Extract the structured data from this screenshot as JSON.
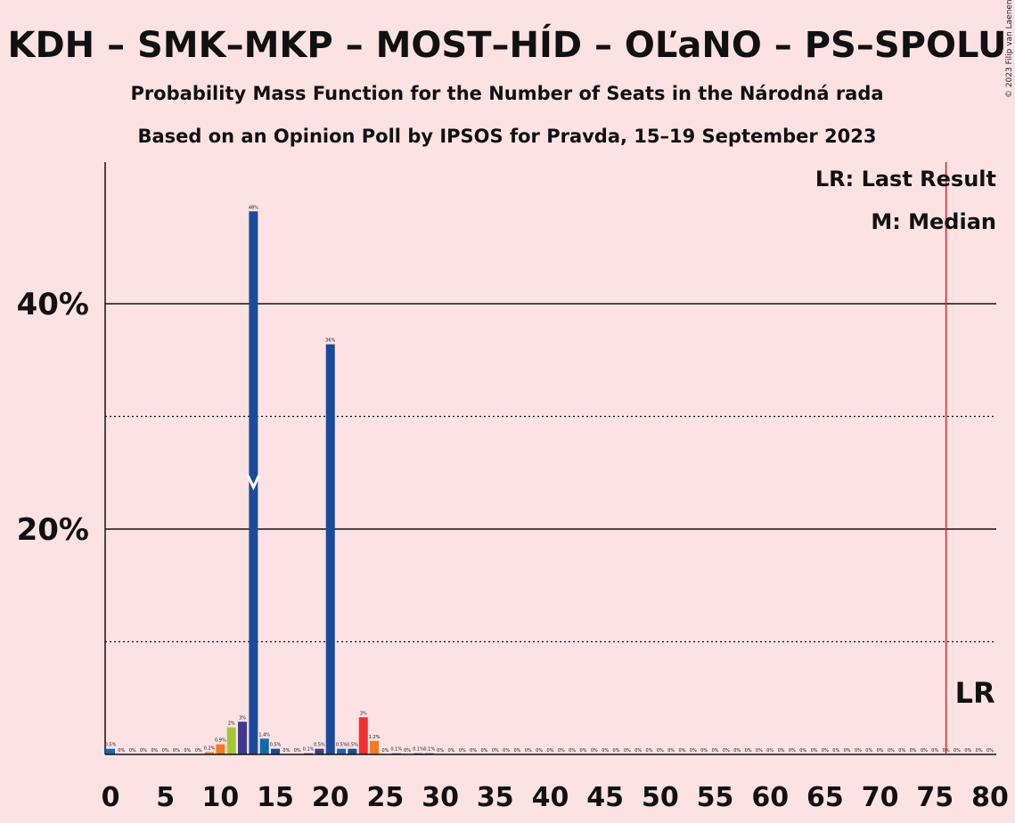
{
  "chart_data": {
    "type": "bar",
    "title": "KDH – SMK–MKP – MOST–HÍD – OĽaNO – PS–SPOLU",
    "subtitle": "Probability Mass Function for the Number of Seats in the Národná rada",
    "subtitle2": "Based on an Opinion Poll by IPSOS for Pravda, 15–19 September 2023",
    "copyright": "© 2023 Filip van Laenen",
    "xlabel": "",
    "ylabel": "",
    "xlim": [
      0,
      80
    ],
    "ylim": [
      0,
      52
    ],
    "y_ticks": [
      {
        "value": 20,
        "label": "20%"
      },
      {
        "value": 40,
        "label": "40%"
      }
    ],
    "y_dotted": [
      10,
      30
    ],
    "x_ticks": [
      0,
      5,
      10,
      15,
      20,
      25,
      30,
      35,
      40,
      45,
      50,
      55,
      60,
      65,
      70,
      75,
      80
    ],
    "grid": true,
    "legend": {
      "position": "top-right",
      "entries": [
        "LR: Last Result",
        "M: Median"
      ]
    },
    "last_result": {
      "seats": 76,
      "label": "LR"
    },
    "median": {
      "seats": 13,
      "label": "M"
    },
    "colors": {
      "background": "#fde2e4",
      "kdh": "#1a4a9c",
      "smk": "#a4c639",
      "most": "#f47920",
      "olano": "#3f3a8f",
      "ps": "#0f6ab0",
      "spolu": "#ee3034",
      "lr_line": "#e6192b"
    },
    "bars": [
      {
        "x": 0,
        "value": 0.5,
        "label": "0.5%",
        "color": "#0f6ab0"
      },
      {
        "x": 1,
        "value": 0,
        "label": "0%"
      },
      {
        "x": 2,
        "value": 0,
        "label": "0%"
      },
      {
        "x": 3,
        "value": 0,
        "label": "0%"
      },
      {
        "x": 4,
        "value": 0,
        "label": "0%"
      },
      {
        "x": 5,
        "value": 0,
        "label": "0%"
      },
      {
        "x": 6,
        "value": 0,
        "label": "0%"
      },
      {
        "x": 7,
        "value": 0,
        "label": "0%"
      },
      {
        "x": 8,
        "value": 0,
        "label": "0%"
      },
      {
        "x": 9,
        "value": 0.2,
        "label": "0.2%",
        "color": "#f47920"
      },
      {
        "x": 10,
        "value": 0.9,
        "label": "0.9%",
        "color": "#f47920"
      },
      {
        "x": 11,
        "value": 2.4,
        "label": "2%",
        "color": "#a4c639"
      },
      {
        "x": 12,
        "value": 2.9,
        "label": "3%",
        "color": "#3f3a8f"
      },
      {
        "x": 13,
        "value": 48.2,
        "label": "48%",
        "color": "#1a4a9c"
      },
      {
        "x": 14,
        "value": 1.4,
        "label": "1.4%",
        "color": "#0f6ab0"
      },
      {
        "x": 15,
        "value": 0.5,
        "label": "0.5%",
        "color": "#1a4a9c"
      },
      {
        "x": 16,
        "value": 0,
        "label": "0%"
      },
      {
        "x": 17,
        "value": 0,
        "label": "0%"
      },
      {
        "x": 18,
        "value": 0.1,
        "label": "0.1%",
        "color": "#3f3a8f"
      },
      {
        "x": 19,
        "value": 0.5,
        "label": "0.5%",
        "color": "#3f3a8f"
      },
      {
        "x": 20,
        "value": 36.4,
        "label": "36%",
        "color": "#1a4a9c"
      },
      {
        "x": 21,
        "value": 0.5,
        "label": "0.5%",
        "color": "#0f6ab0"
      },
      {
        "x": 22,
        "value": 0.5,
        "label": "0.5%",
        "color": "#1a4a9c"
      },
      {
        "x": 23,
        "value": 3.3,
        "label": "3%",
        "color": "#ee3034"
      },
      {
        "x": 24,
        "value": 1.2,
        "label": "1.2%",
        "color": "#f47920"
      },
      {
        "x": 25,
        "value": 0,
        "label": "0%"
      },
      {
        "x": 26,
        "value": 0.1,
        "label": "0.1%",
        "color": "#0f6ab0"
      },
      {
        "x": 27,
        "value": 0,
        "label": "0%"
      },
      {
        "x": 28,
        "value": 0.1,
        "label": "0.1%",
        "color": "#0f6ab0"
      },
      {
        "x": 29,
        "value": 0.1,
        "label": "0.1%",
        "color": "#0f6ab0"
      },
      {
        "x": 30,
        "value": 0,
        "label": "0%"
      },
      {
        "x": 31,
        "value": 0,
        "label": "0%"
      },
      {
        "x": 32,
        "value": 0,
        "label": "0%"
      },
      {
        "x": 33,
        "value": 0,
        "label": "0%"
      },
      {
        "x": 34,
        "value": 0,
        "label": "0%"
      },
      {
        "x": 35,
        "value": 0,
        "label": "0%"
      },
      {
        "x": 36,
        "value": 0,
        "label": "0%"
      },
      {
        "x": 37,
        "value": 0,
        "label": "0%"
      },
      {
        "x": 38,
        "value": 0,
        "label": "0%"
      },
      {
        "x": 39,
        "value": 0,
        "label": "0%"
      },
      {
        "x": 40,
        "value": 0,
        "label": "0%"
      },
      {
        "x": 41,
        "value": 0,
        "label": "0%"
      },
      {
        "x": 42,
        "value": 0,
        "label": "0%"
      },
      {
        "x": 43,
        "value": 0,
        "label": "0%"
      },
      {
        "x": 44,
        "value": 0,
        "label": "0%"
      },
      {
        "x": 45,
        "value": 0,
        "label": "0%"
      },
      {
        "x": 46,
        "value": 0,
        "label": "0%"
      },
      {
        "x": 47,
        "value": 0,
        "label": "0%"
      },
      {
        "x": 48,
        "value": 0,
        "label": "0%"
      },
      {
        "x": 49,
        "value": 0,
        "label": "0%"
      },
      {
        "x": 50,
        "value": 0,
        "label": "0%"
      },
      {
        "x": 51,
        "value": 0,
        "label": "0%"
      },
      {
        "x": 52,
        "value": 0,
        "label": "0%"
      },
      {
        "x": 53,
        "value": 0,
        "label": "0%"
      },
      {
        "x": 54,
        "value": 0,
        "label": "0%"
      },
      {
        "x": 55,
        "value": 0,
        "label": "0%"
      },
      {
        "x": 56,
        "value": 0,
        "label": "0%"
      },
      {
        "x": 57,
        "value": 0,
        "label": "0%"
      },
      {
        "x": 58,
        "value": 0,
        "label": "0%"
      },
      {
        "x": 59,
        "value": 0,
        "label": "0%"
      },
      {
        "x": 60,
        "value": 0,
        "label": "0%"
      },
      {
        "x": 61,
        "value": 0,
        "label": "0%"
      },
      {
        "x": 62,
        "value": 0,
        "label": "0%"
      },
      {
        "x": 63,
        "value": 0,
        "label": "0%"
      },
      {
        "x": 64,
        "value": 0,
        "label": "0%"
      },
      {
        "x": 65,
        "value": 0,
        "label": "0%"
      },
      {
        "x": 66,
        "value": 0,
        "label": "0%"
      },
      {
        "x": 67,
        "value": 0,
        "label": "0%"
      },
      {
        "x": 68,
        "value": 0,
        "label": "0%"
      },
      {
        "x": 69,
        "value": 0,
        "label": "0%"
      },
      {
        "x": 70,
        "value": 0,
        "label": "0%"
      },
      {
        "x": 71,
        "value": 0,
        "label": "0%"
      },
      {
        "x": 72,
        "value": 0,
        "label": "0%"
      },
      {
        "x": 73,
        "value": 0,
        "label": "0%"
      },
      {
        "x": 74,
        "value": 0,
        "label": "0%"
      },
      {
        "x": 75,
        "value": 0,
        "label": "0%"
      },
      {
        "x": 76,
        "value": 0,
        "label": "0%"
      },
      {
        "x": 77,
        "value": 0,
        "label": "0%"
      },
      {
        "x": 78,
        "value": 0,
        "label": "0%"
      },
      {
        "x": 79,
        "value": 0,
        "label": "0%"
      },
      {
        "x": 80,
        "value": 0,
        "label": "0%"
      }
    ]
  }
}
